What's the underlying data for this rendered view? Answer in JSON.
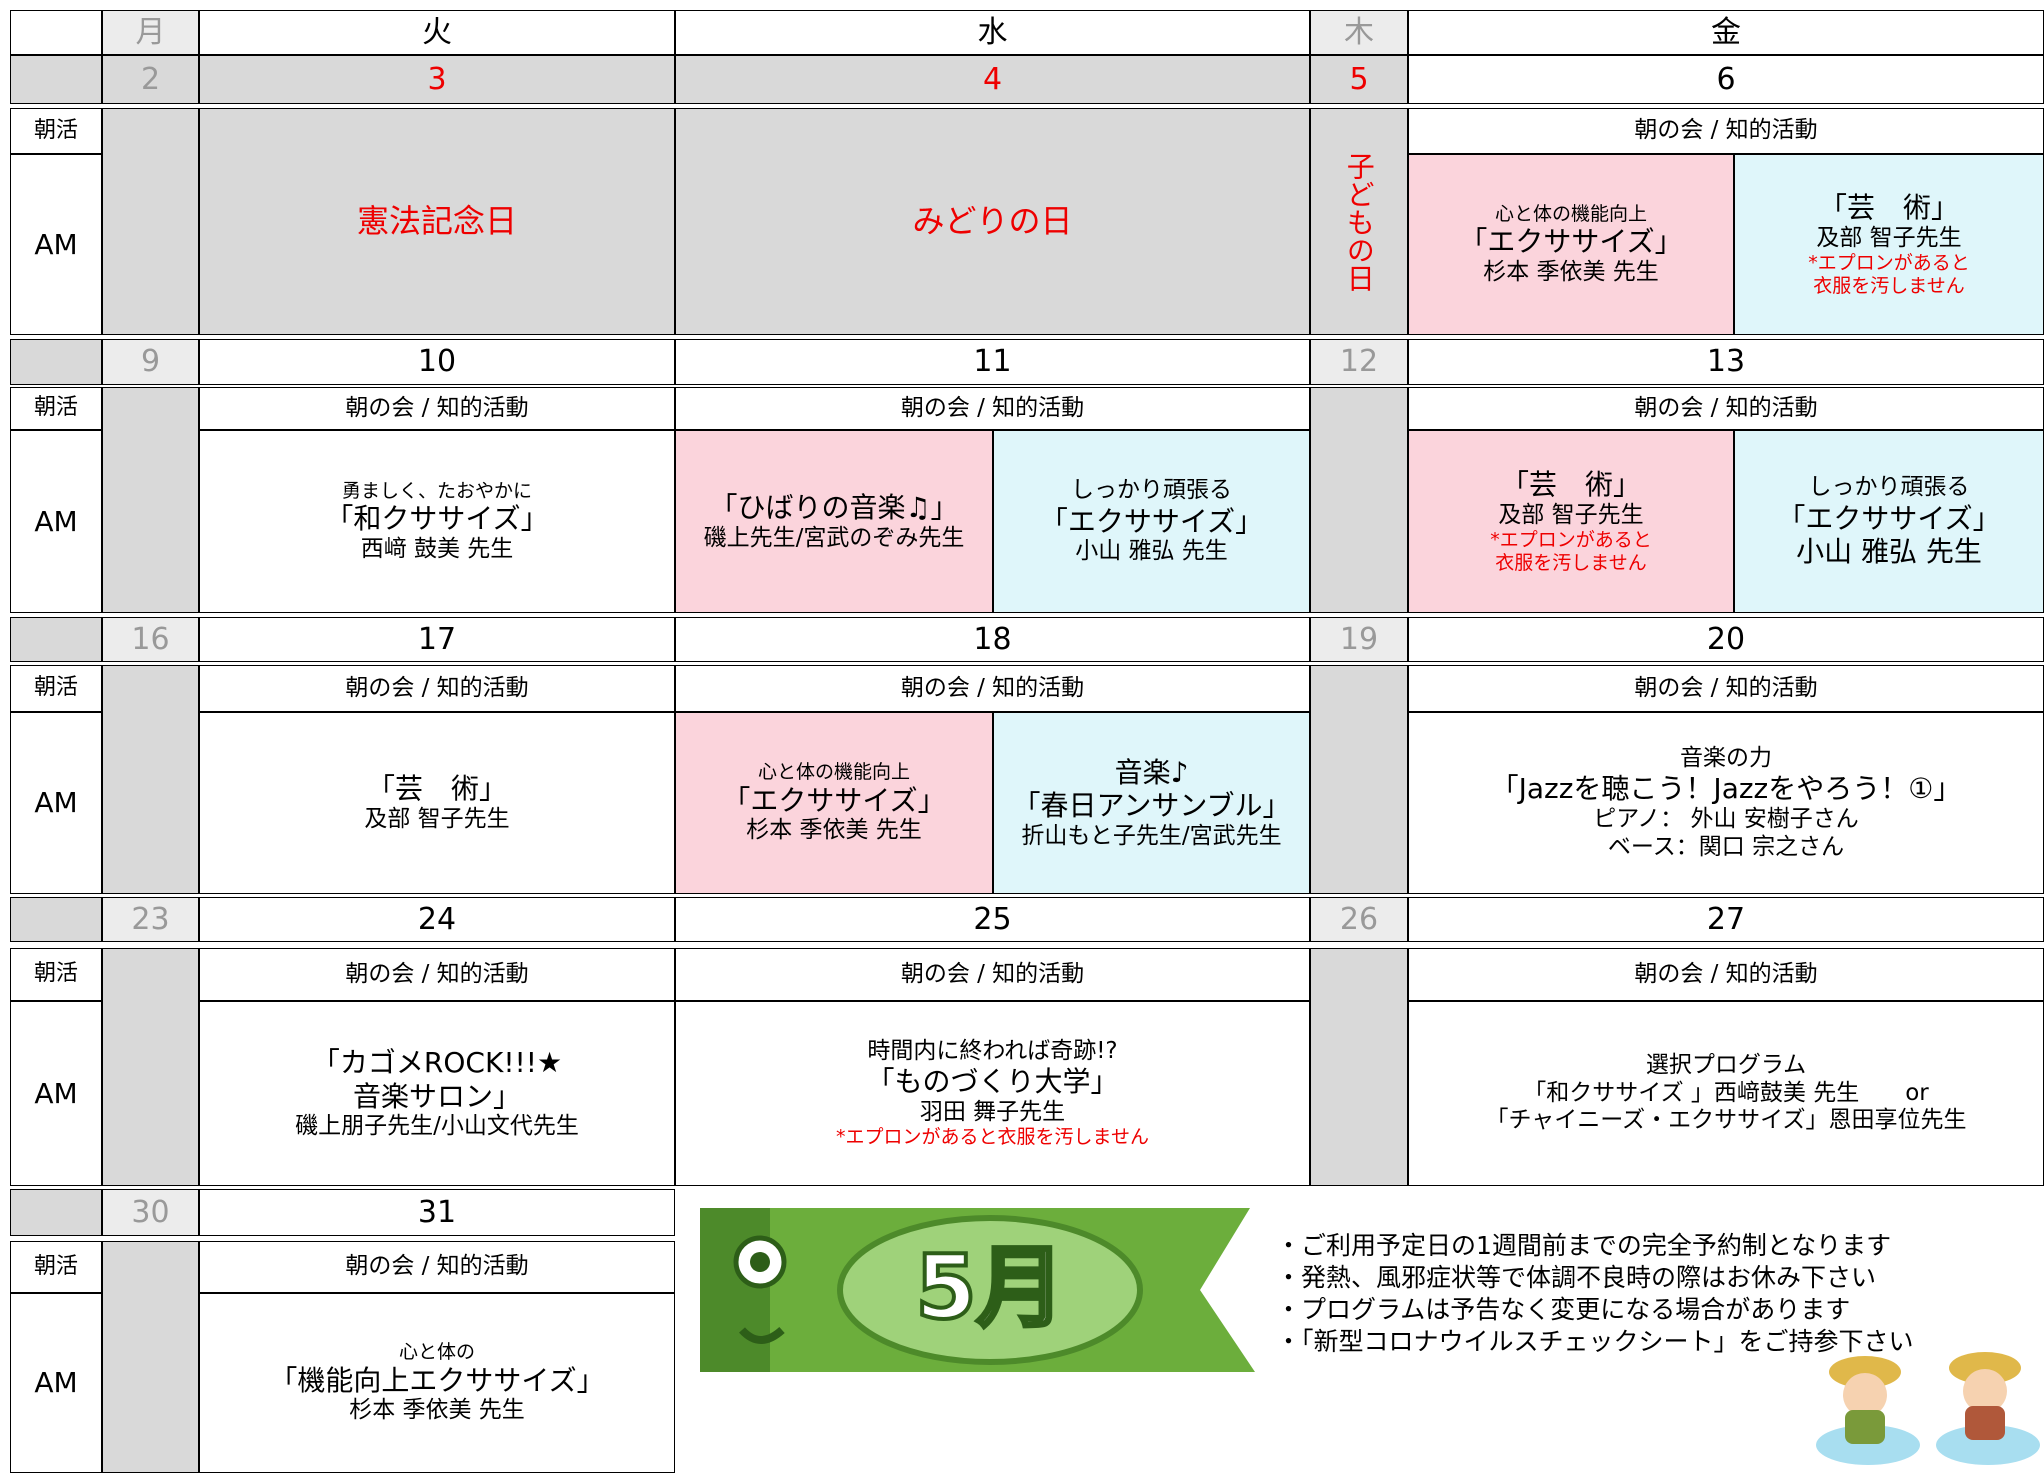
{
  "weekdays": [
    "月",
    "火",
    "水",
    "木",
    "金"
  ],
  "banner_text": "5月",
  "notices": [
    "・ご利用予定日の1週間前までの完全予約制となります",
    "・発熱、風邪症状等で体調不良時の際はお休み下さい",
    "・プログラムは予告なく変更になる場合があります",
    "・「新型コロナウイルスチェックシート」をご持参下さい"
  ],
  "weeks": [
    {
      "dates": [
        2,
        3,
        4,
        5,
        6
      ],
      "labels": [
        "朝活",
        "AM"
      ],
      "cells": [
        {
          "lines": [
            "憲法記念日"
          ]
        },
        {
          "lines": [
            "みどりの日"
          ]
        },
        {
          "lines": [
            "子どもの日"
          ]
        },
        {
          "lines": [
            "朝の会 / 知的活動"
          ]
        },
        {
          "lines": [
            "心と体の機能向上",
            "「エクササイズ」",
            "杉本 季依美 先生"
          ]
        },
        {
          "lines": [
            "「芸　術」",
            "及部 智子先生",
            "*エプロンがあると",
            "衣服を汚しません"
          ]
        }
      ]
    },
    {
      "dates": [
        9,
        10,
        11,
        12,
        13
      ],
      "labels": [
        "朝活",
        "AM"
      ],
      "cells": [
        {
          "lines": [
            "朝の会 / 知的活動"
          ]
        },
        {
          "lines": [
            "勇ましく、たおやかに",
            "「和クササイズ」",
            "西﨑 鼓美 先生"
          ]
        },
        {
          "lines": [
            "朝の会 / 知的活動"
          ]
        },
        {
          "lines": [
            "「ひばりの音楽♫」",
            "磯上先生/宮武のぞみ先生"
          ]
        },
        {
          "lines": [
            "しっかり頑張る",
            "「エクササイズ」",
            "小山 雅弘 先生"
          ]
        },
        {
          "lines": [
            "朝の会 / 知的活動"
          ]
        },
        {
          "lines": [
            "「芸　術」",
            "及部 智子先生",
            "*エプロンがあると",
            "衣服を汚しません"
          ]
        },
        {
          "lines": [
            "しっかり頑張る",
            "「エクササイズ」",
            "小山 雅弘 先生"
          ]
        }
      ]
    },
    {
      "dates": [
        16,
        17,
        18,
        19,
        20
      ],
      "labels": [
        "朝活",
        "AM"
      ],
      "cells": [
        {
          "lines": [
            "朝の会 / 知的活動"
          ]
        },
        {
          "lines": [
            "「芸　術」",
            "及部 智子先生"
          ]
        },
        {
          "lines": [
            "朝の会 / 知的活動"
          ]
        },
        {
          "lines": [
            "心と体の機能向上",
            "「エクササイズ」",
            "杉本 季依美 先生"
          ]
        },
        {
          "lines": [
            "音楽♪",
            "「春日アンサンブル」",
            "折山もと子先生/宮武先生"
          ]
        },
        {
          "lines": [
            "朝の会 / 知的活動"
          ]
        },
        {
          "lines": [
            "音楽の力",
            "「Jazzを聴こう！Jazzをやろう！①」",
            "ピアノ： 外山 安樹子さん",
            "ベース：関口 宗之さん"
          ]
        }
      ]
    },
    {
      "dates": [
        23,
        24,
        25,
        26,
        27
      ],
      "labels": [
        "朝活",
        "AM"
      ],
      "cells": [
        {
          "lines": [
            "朝の会 / 知的活動"
          ]
        },
        {
          "lines": [
            "「カゴメROCK!!!★",
            "音楽サロン」",
            "磯上朋子先生/小山文代先生"
          ]
        },
        {
          "lines": [
            "朝の会 / 知的活動"
          ]
        },
        {
          "lines": [
            "時間内に終われば奇跡!?",
            "「ものづくり大学」",
            "羽田 舞子先生",
            "*エプロンがあると衣服を汚しません"
          ]
        },
        {
          "lines": [
            "朝の会 / 知的活動"
          ]
        },
        {
          "lines": [
            "選択プログラム",
            "「和クササイズ 」西﨑鼓美 先生　　or",
            "「チャイニーズ・エクササイズ」恩田享位先生"
          ]
        }
      ]
    },
    {
      "dates": [
        30,
        31
      ],
      "labels": [
        "朝活",
        "AM"
      ],
      "cells": [
        {
          "lines": [
            "朝の会 / 知的活動"
          ]
        },
        {
          "lines": [
            "心と体の",
            "「機能向上エクササイズ」",
            "杉本 季依美 先生"
          ]
        }
      ]
    }
  ]
}
